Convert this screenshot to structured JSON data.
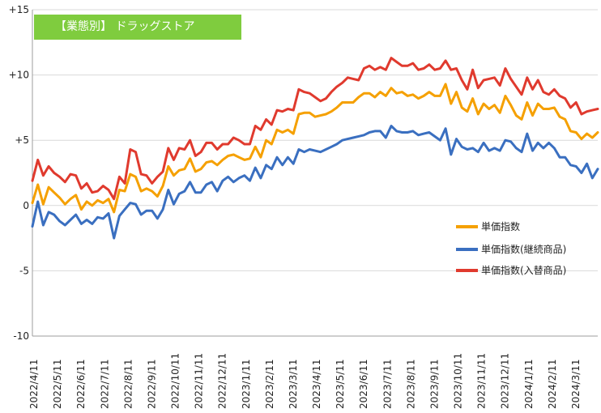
{
  "chart_data": {
    "type": "line",
    "title": "【業態別】 ドラッグストア",
    "xlabel": "",
    "ylabel": "",
    "ylim": [
      -10,
      15
    ],
    "yticks": [
      "-10",
      "-5",
      "0",
      "+5",
      "+10",
      "+15"
    ],
    "ytick_values": [
      -10,
      -5,
      0,
      5,
      10,
      15
    ],
    "grid": true,
    "legend_position": "right",
    "x_tick_labels": [
      "2022/4/11",
      "2022/5/11",
      "2022/6/11",
      "2022/7/11",
      "2022/8/11",
      "2022/9/11",
      "2022/10/11",
      "2022/11/11",
      "2022/12/11",
      "2023/1/11",
      "2023/2/11",
      "2023/3/11",
      "2023/4/11",
      "2023/5/11",
      "2023/6/11",
      "2023/7/11",
      "2023/8/11",
      "2023/9/11",
      "2023/10/11",
      "2023/11/11",
      "2023/12/11",
      "2024/1/11",
      "2024/2/11",
      "2024/3/11"
    ],
    "series": [
      {
        "name": "単価指数",
        "color": "#f5a000",
        "values": [
          0.2,
          1.6,
          0.1,
          1.4,
          1.0,
          0.6,
          0.1,
          0.5,
          0.8,
          -0.3,
          0.3,
          0.0,
          0.4,
          0.2,
          0.5,
          -0.5,
          1.2,
          1.1,
          2.4,
          2.2,
          1.1,
          1.3,
          1.1,
          0.7,
          1.5,
          3.0,
          2.3,
          2.7,
          2.8,
          3.6,
          2.6,
          2.8,
          3.3,
          3.4,
          3.1,
          3.5,
          3.8,
          3.9,
          3.7,
          3.5,
          3.6,
          4.5,
          3.7,
          5.0,
          4.7,
          5.8,
          5.6,
          5.8,
          5.5,
          7.0,
          7.1,
          7.1,
          6.8,
          6.9,
          7.0,
          7.2,
          7.5,
          7.9,
          7.9,
          7.9,
          8.3,
          8.6,
          8.6,
          8.3,
          8.7,
          8.4,
          9.0,
          8.6,
          8.7,
          8.4,
          8.5,
          8.2,
          8.4,
          8.7,
          8.4,
          8.4,
          9.3,
          7.8,
          8.7,
          7.5,
          7.2,
          8.2,
          7.0,
          7.8,
          7.4,
          7.7,
          7.1,
          8.4,
          7.7,
          6.9,
          6.6,
          7.9,
          6.9,
          7.8,
          7.4,
          7.4,
          7.5,
          6.8,
          6.6,
          5.7,
          5.6,
          5.1,
          5.5,
          5.2,
          5.6
        ]
      },
      {
        "name": "単価指数(継続商品)",
        "color": "#3a6fc0",
        "values": [
          -1.6,
          0.3,
          -1.5,
          -0.5,
          -0.7,
          -1.2,
          -1.5,
          -1.1,
          -0.7,
          -1.4,
          -1.1,
          -1.4,
          -0.9,
          -1.0,
          -0.6,
          -2.5,
          -0.8,
          -0.3,
          0.2,
          0.1,
          -0.7,
          -0.4,
          -0.4,
          -1.0,
          -0.3,
          1.2,
          0.1,
          0.9,
          1.1,
          1.8,
          1.0,
          1.0,
          1.6,
          1.8,
          1.1,
          1.9,
          2.2,
          1.8,
          2.1,
          2.3,
          1.9,
          2.9,
          2.1,
          3.1,
          2.8,
          3.7,
          3.1,
          3.7,
          3.2,
          4.3,
          4.1,
          4.3,
          4.2,
          4.1,
          4.3,
          4.5,
          4.7,
          5.0,
          5.1,
          5.2,
          5.3,
          5.4,
          5.6,
          5.7,
          5.7,
          5.2,
          6.1,
          5.7,
          5.6,
          5.6,
          5.7,
          5.4,
          5.5,
          5.6,
          5.3,
          5.0,
          5.9,
          3.9,
          5.1,
          4.5,
          4.3,
          4.4,
          4.1,
          4.8,
          4.2,
          4.4,
          4.2,
          5.0,
          4.9,
          4.4,
          4.1,
          5.5,
          4.2,
          4.8,
          4.4,
          4.8,
          4.4,
          3.7,
          3.7,
          3.1,
          3.0,
          2.5,
          3.2,
          2.1,
          2.8
        ]
      },
      {
        "name": "単価指数(入替商品)",
        "color": "#e03a2e",
        "values": [
          1.9,
          3.5,
          2.3,
          3.0,
          2.5,
          2.2,
          1.8,
          2.4,
          2.3,
          1.3,
          1.7,
          1.0,
          1.1,
          1.5,
          1.2,
          0.5,
          2.2,
          1.7,
          4.3,
          4.1,
          2.4,
          2.3,
          1.7,
          2.2,
          2.6,
          4.4,
          3.5,
          4.4,
          4.3,
          5.0,
          3.8,
          4.1,
          4.8,
          4.8,
          4.3,
          4.7,
          4.7,
          5.2,
          5.0,
          4.7,
          4.7,
          6.1,
          5.8,
          6.6,
          6.2,
          7.3,
          7.2,
          7.4,
          7.3,
          8.9,
          8.7,
          8.6,
          8.3,
          8.0,
          8.2,
          8.7,
          9.1,
          9.4,
          9.8,
          9.7,
          9.6,
          10.5,
          10.7,
          10.4,
          10.6,
          10.4,
          11.3,
          11.0,
          10.7,
          10.7,
          10.9,
          10.4,
          10.5,
          10.8,
          10.4,
          10.5,
          11.1,
          10.4,
          10.5,
          9.6,
          8.9,
          10.4,
          9.0,
          9.6,
          9.7,
          9.8,
          9.2,
          10.5,
          9.7,
          9.1,
          8.5,
          9.8,
          8.9,
          9.6,
          8.7,
          8.5,
          8.9,
          8.4,
          8.2,
          7.5,
          7.9,
          7.0,
          7.2,
          7.3,
          7.4
        ]
      }
    ]
  }
}
